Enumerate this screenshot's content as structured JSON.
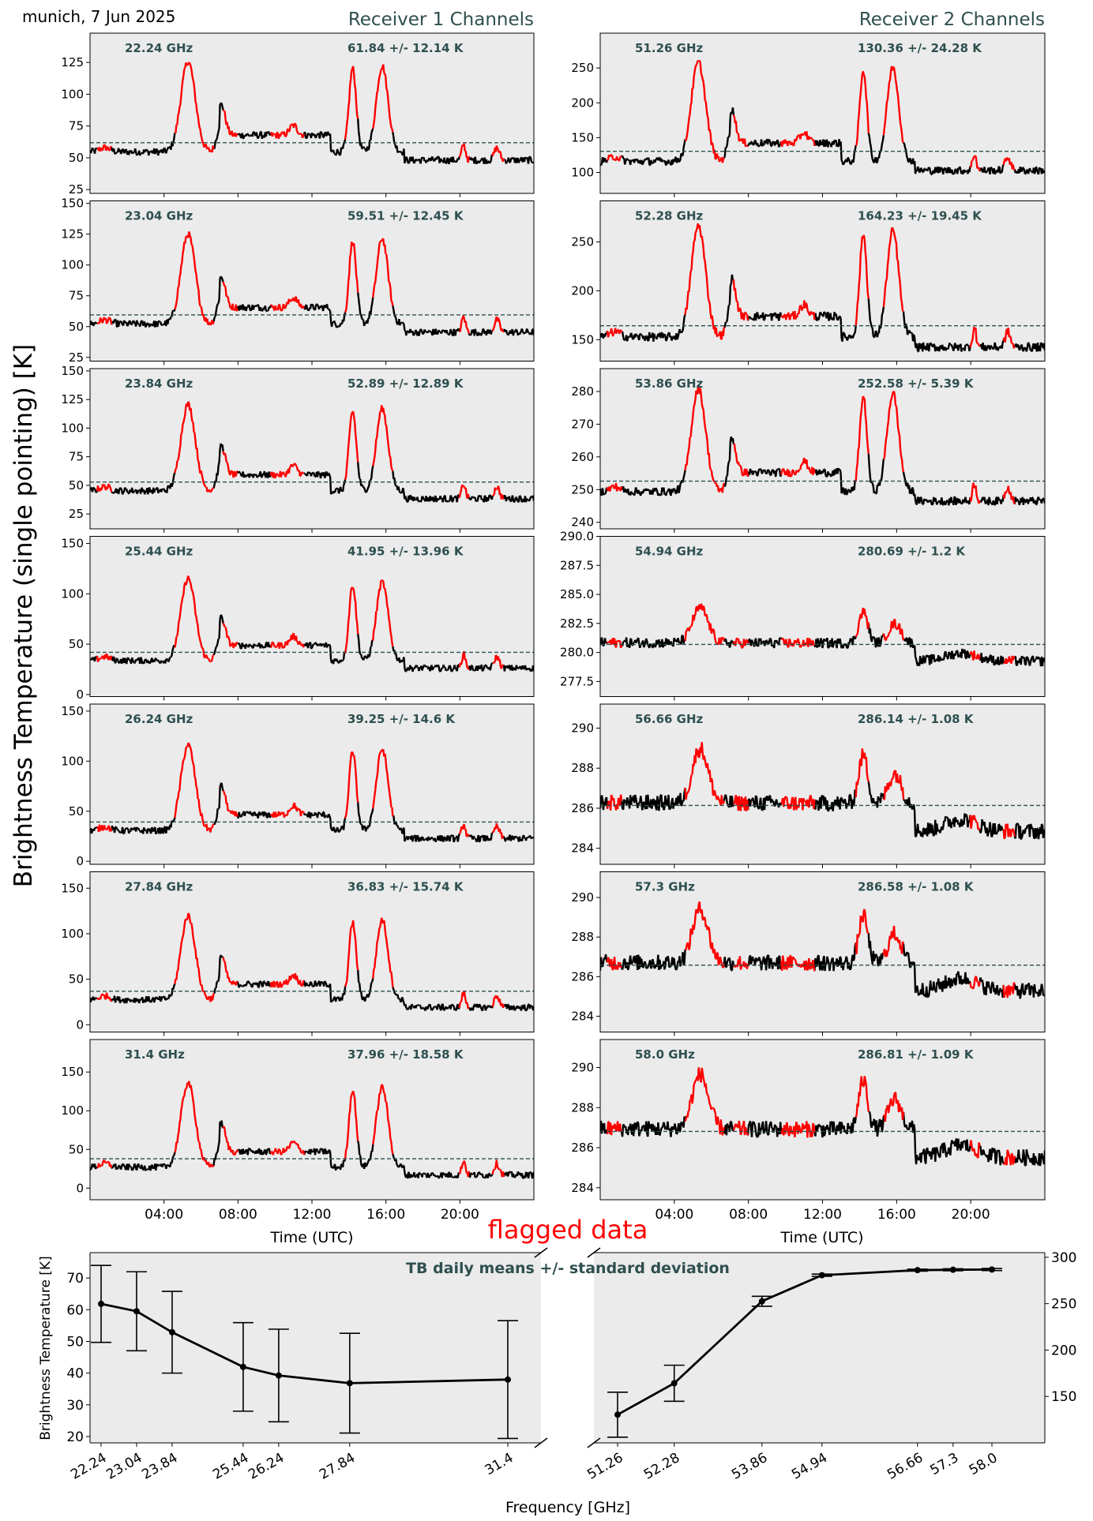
{
  "header": {
    "location_date": "munich, 7 Jun 2025",
    "receiver1_title": "Receiver 1 Channels",
    "receiver2_title": "Receiver 2 Channels",
    "y_label": "Brightness Temperature (single pointing) [K]",
    "time_label": "Time (UTC)",
    "flagged_label": "flagged data"
  },
  "colors": {
    "panel_bg": "#ebebeb",
    "trace": "#000000",
    "flagged": "#ff0000",
    "mean_line": "#2f4f4f",
    "title_text": "#2f4f4f"
  },
  "time_ticks": [
    "04:00",
    "08:00",
    "12:00",
    "16:00",
    "20:00"
  ],
  "chart_data": [
    {
      "type": "line",
      "receiver": "Receiver 1 Channels",
      "xlabel": "Time (UTC)",
      "ylabel": "Brightness Temperature (single pointing) [K]",
      "panels": [
        {
          "freq_label": "22.24 GHz",
          "stat_label": "61.84 +/- 12.14 K",
          "mean": 61.84,
          "std": 12.14,
          "ylim": [
            22,
            148
          ],
          "yticks": [
            25,
            50,
            75,
            100,
            125
          ]
        },
        {
          "freq_label": "23.04 GHz",
          "stat_label": "59.51 +/- 12.45 K",
          "mean": 59.51,
          "std": 12.45,
          "ylim": [
            22,
            152
          ],
          "yticks": [
            25,
            50,
            75,
            100,
            125,
            150
          ]
        },
        {
          "freq_label": "23.84 GHz",
          "stat_label": "52.89 +/- 12.89 K",
          "mean": 52.89,
          "std": 12.89,
          "ylim": [
            12,
            152
          ],
          "yticks": [
            25,
            50,
            75,
            100,
            125,
            150
          ]
        },
        {
          "freq_label": "25.44 GHz",
          "stat_label": "41.95 +/- 13.96 K",
          "mean": 41.95,
          "std": 13.96,
          "ylim": [
            -2,
            157
          ],
          "yticks": [
            0,
            50,
            100,
            150
          ]
        },
        {
          "freq_label": "26.24 GHz",
          "stat_label": "39.25 +/- 14.6 K",
          "mean": 39.25,
          "std": 14.6,
          "ylim": [
            -3,
            157
          ],
          "yticks": [
            0,
            50,
            100,
            150
          ]
        },
        {
          "freq_label": "27.84 GHz",
          "stat_label": "36.83 +/- 15.74 K",
          "mean": 36.83,
          "std": 15.74,
          "ylim": [
            -8,
            168
          ],
          "yticks": [
            0,
            50,
            100,
            150
          ]
        },
        {
          "freq_label": "31.4 GHz",
          "stat_label": "37.96 +/- 18.58 K",
          "mean": 37.96,
          "std": 18.58,
          "ylim": [
            -15,
            192
          ],
          "yticks": [
            0,
            50,
            100,
            150
          ]
        }
      ]
    },
    {
      "type": "line",
      "receiver": "Receiver 2 Channels",
      "xlabel": "Time (UTC)",
      "panels": [
        {
          "freq_label": "51.26 GHz",
          "stat_label": "130.36 +/- 24.28 K",
          "mean": 130.36,
          "std": 24.28,
          "ylim": [
            70,
            300
          ],
          "yticks": [
            100,
            150,
            200,
            250
          ]
        },
        {
          "freq_label": "52.28 GHz",
          "stat_label": "164.23 +/- 19.45 K",
          "mean": 164.23,
          "std": 19.45,
          "ylim": [
            128,
            292
          ],
          "yticks": [
            150,
            200,
            250
          ]
        },
        {
          "freq_label": "53.86 GHz",
          "stat_label": "252.58 +/- 5.39 K",
          "mean": 252.58,
          "std": 5.39,
          "ylim": [
            238,
            287
          ],
          "yticks": [
            240,
            250,
            260,
            270,
            280
          ]
        },
        {
          "freq_label": "54.94 GHz",
          "stat_label": "280.69 +/- 1.2 K",
          "mean": 280.69,
          "std": 1.2,
          "ylim": [
            276.2,
            290.0
          ],
          "yticks": [
            277.5,
            280.0,
            282.5,
            285.0,
            287.5,
            290.0
          ]
        },
        {
          "freq_label": "56.66 GHz",
          "stat_label": "286.14 +/- 1.08 K",
          "mean": 286.14,
          "std": 1.08,
          "ylim": [
            283.2,
            291.2
          ],
          "yticks": [
            284,
            286,
            288,
            290
          ]
        },
        {
          "freq_label": "57.3 GHz",
          "stat_label": "286.58 +/- 1.08 K",
          "mean": 286.58,
          "std": 1.08,
          "ylim": [
            283.2,
            291.3
          ],
          "yticks": [
            284,
            286,
            288,
            290
          ]
        },
        {
          "freq_label": "58.0 GHz",
          "stat_label": "286.81 +/- 1.09 K",
          "mean": 286.81,
          "std": 1.09,
          "ylim": [
            283.4,
            291.4
          ],
          "yticks": [
            284,
            286,
            288,
            290
          ]
        }
      ]
    },
    {
      "type": "line",
      "title": "TB daily means +/- standard deviation",
      "xlabel": "Frequency [GHz]",
      "ylabel": "Brightness Temperature [K]",
      "receiver1": {
        "freqs": [
          22.24,
          23.04,
          23.84,
          25.44,
          26.24,
          27.84,
          31.4
        ],
        "means": [
          61.84,
          59.51,
          52.89,
          41.95,
          39.25,
          36.83,
          37.96
        ],
        "stds": [
          12.14,
          12.45,
          12.89,
          13.96,
          14.6,
          15.74,
          18.58
        ],
        "ylim": [
          18,
          78
        ],
        "yticks": [
          20,
          30,
          40,
          50,
          60,
          70
        ]
      },
      "receiver2": {
        "freqs": [
          51.26,
          52.28,
          53.86,
          54.94,
          56.66,
          57.3,
          58.0
        ],
        "means": [
          130.36,
          164.23,
          252.58,
          280.69,
          286.14,
          286.58,
          286.81
        ],
        "stds": [
          24.28,
          19.45,
          5.39,
          1.2,
          1.08,
          1.08,
          1.09
        ],
        "ylim": [
          100,
          305
        ],
        "yticks": [
          150,
          200,
          250,
          300
        ]
      },
      "xtick_labels": [
        "22.24",
        "23.04",
        "23.84",
        "25.44",
        "26.24",
        "27.84",
        "31.4",
        "51.26",
        "52.28",
        "53.86",
        "54.94",
        "56.66",
        "57.3",
        "58.0"
      ]
    }
  ]
}
